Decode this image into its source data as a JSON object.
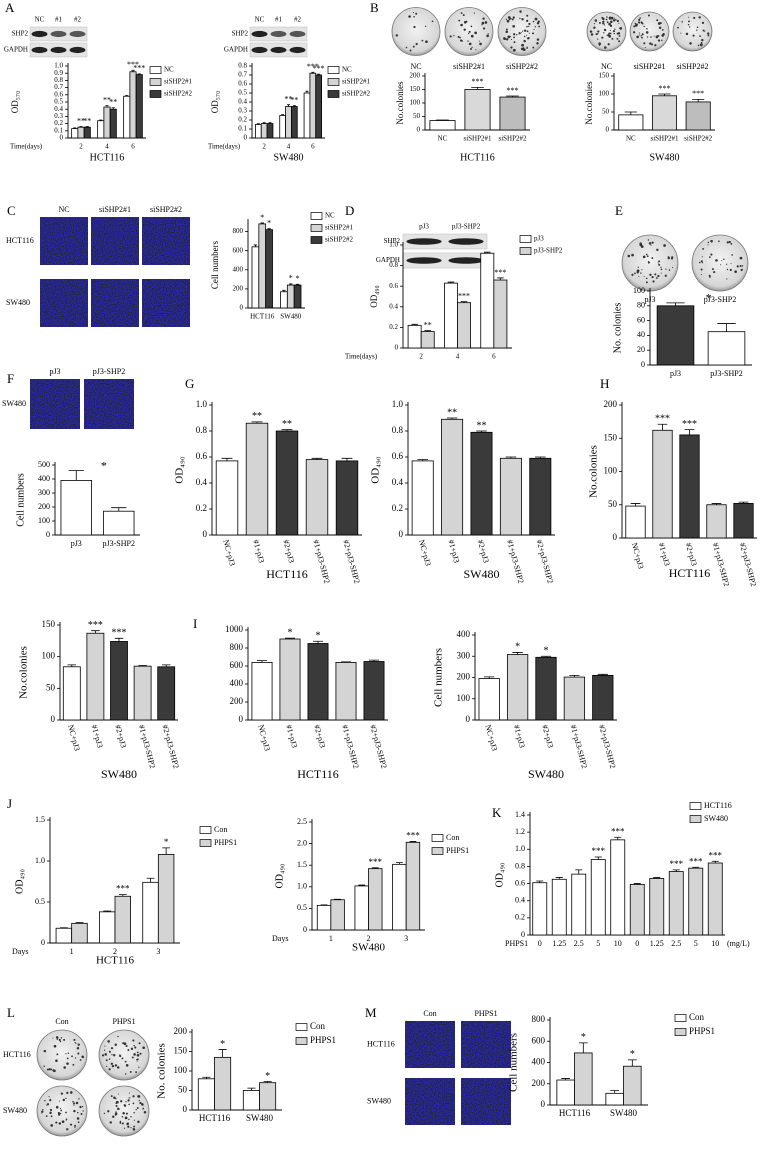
{
  "panel_letters": [
    "A",
    "B",
    "C",
    "D",
    "E",
    "F",
    "G",
    "H",
    "I",
    "J",
    "K",
    "L",
    "M"
  ],
  "images": [
    {
      "kind": "blot",
      "columns": [
        "NC",
        "#1",
        "#2"
      ],
      "rows": [
        "SHP2",
        "GAPDH"
      ]
    },
    {
      "kind": "blot",
      "columns": [
        "NC",
        "#1",
        "#2"
      ],
      "rows": [
        "SHP2",
        "GAPDH"
      ]
    },
    {
      "kind": "plate",
      "columns": [
        "NC",
        "siSHP2#1",
        "siSHP2#2"
      ]
    },
    {
      "kind": "plate",
      "columns": [
        "NC",
        "siSHP2#1",
        "siSHP2#2"
      ]
    },
    {
      "kind": "fluor",
      "columns": [
        "NC",
        "siSHP2#1",
        "siSHP2#2"
      ],
      "rows": [
        "HCT116",
        "SW480"
      ]
    },
    {
      "kind": "blot",
      "columns": [
        "pJ3",
        "pJ3-SHP2"
      ],
      "rows": [
        "SHP2",
        "GAPDH"
      ]
    },
    {
      "kind": "plate",
      "columns": [
        "pJ3",
        "pJ3-SHP2"
      ]
    },
    {
      "kind": "fluor",
      "columns": [
        "pJ3",
        "pJ3-SHP2"
      ],
      "rows": [
        "SW480"
      ]
    },
    {
      "kind": "plate",
      "columns": [
        "Con",
        "PHPS1"
      ],
      "rows": [
        "HCT116",
        "SW480"
      ]
    },
    {
      "kind": "fluor",
      "columns": [
        "Con",
        "PHPS1"
      ],
      "rows": [
        "HCT116",
        "SW480"
      ]
    }
  ],
  "chart_data": [
    {
      "type": "bar",
      "categories": [
        "2",
        "4",
        "6"
      ],
      "xcaption": "Time(days)",
      "xlabel": "HCT116",
      "ylabel": "OD₅₇₀",
      "ylim": [
        0,
        1
      ],
      "yticks": [
        0,
        0.1,
        0.2,
        0.3,
        0.4,
        0.5,
        0.6,
        0.7,
        0.8,
        0.9,
        {
          "value": 1,
          "label": "1.0"
        }
      ],
      "series": [
        {
          "name": "NC",
          "color": "#ffffff",
          "values": [
            0.13,
            0.24,
            0.58
          ],
          "errors": [
            0.01,
            0.01,
            0.01
          ],
          "stars": [
            null,
            null,
            null
          ]
        },
        {
          "name": "siSHP2#1",
          "color": "#d4d4d4",
          "values": [
            0.15,
            0.43,
            0.92
          ],
          "errors": [
            0.01,
            0.02,
            0.02
          ],
          "stars": [
            "**",
            "**",
            "***"
          ]
        },
        {
          "name": "siSHP2#2",
          "color": "#3a3a3a",
          "values": [
            0.15,
            0.4,
            0.88
          ],
          "errors": [
            0.01,
            0.02,
            0.01
          ],
          "stars": [
            "**",
            "**",
            "***"
          ]
        }
      ]
    },
    {
      "type": "bar",
      "categories": [
        "2",
        "4",
        "6"
      ],
      "xcaption": "Time(days)",
      "xlabel": "SW480",
      "ylabel": "OD₅₇₀",
      "ylim": [
        0,
        0.8
      ],
      "yticks": [
        0,
        0.1,
        0.2,
        0.3,
        0.4,
        0.5,
        0.6,
        0.7,
        0.8
      ],
      "series": [
        {
          "name": "NC",
          "color": "#ffffff",
          "values": [
            0.15,
            0.25,
            0.5
          ],
          "errors": [
            0.01,
            0.01,
            0.02
          ],
          "stars": [
            null,
            null,
            null
          ]
        },
        {
          "name": "siSHP2#1",
          "color": "#d4d4d4",
          "values": [
            0.16,
            0.35,
            0.72
          ],
          "errors": [
            0.01,
            0.02,
            0.01
          ],
          "stars": [
            null,
            "**",
            "***"
          ]
        },
        {
          "name": "siSHP2#2",
          "color": "#3a3a3a",
          "values": [
            0.16,
            0.35,
            0.7
          ],
          "errors": [
            0.01,
            0.01,
            0.01
          ],
          "stars": [
            null,
            "**",
            "***"
          ]
        }
      ]
    },
    {
      "type": "bar",
      "categories": [
        "NC",
        "siSHP2#1",
        "siSHP2#2"
      ],
      "values": [
        35,
        150,
        122
      ],
      "errors": [
        2,
        8,
        4
      ],
      "colors": [
        "#ffffff",
        "#d9d9d9",
        "#bdbdbd"
      ],
      "stars": [
        null,
        "***",
        "***"
      ],
      "ylim": [
        0,
        200
      ],
      "yticks": [
        0,
        50,
        100,
        150,
        200
      ],
      "ylabel": "No.colonies",
      "xlabel": "HCT116"
    },
    {
      "type": "bar",
      "categories": [
        "NC",
        "siSHP2#1",
        "siSHP2#2"
      ],
      "values": [
        42,
        95,
        78
      ],
      "errors": [
        8,
        5,
        7
      ],
      "colors": [
        "#ffffff",
        "#d9d9d9",
        "#bdbdbd"
      ],
      "stars": [
        null,
        "***",
        "***"
      ],
      "ylim": [
        0,
        150
      ],
      "yticks": [
        0,
        50,
        100,
        150
      ],
      "ylabel": "No.colonies",
      "xlabel": "SW480"
    },
    {
      "type": "bar",
      "categories": [
        "HCT116",
        "SW480"
      ],
      "ylabel": "Cell numbers",
      "ylim": [
        0,
        900
      ],
      "yticks": [
        0,
        200,
        400,
        600,
        800
      ],
      "series": [
        {
          "name": "NC",
          "color": "#ffffff",
          "values": [
            640,
            170
          ],
          "errors": [
            20,
            15
          ],
          "stars": [
            null,
            null
          ]
        },
        {
          "name": "siSHP2#1",
          "color": "#d4d4d4",
          "values": [
            880,
            240
          ],
          "errors": [
            10,
            12
          ],
          "stars": [
            "*",
            "*"
          ]
        },
        {
          "name": "siSHP2#2",
          "color": "#3a3a3a",
          "values": [
            820,
            240
          ],
          "errors": [
            10,
            8
          ],
          "stars": [
            "*",
            "*"
          ]
        }
      ]
    },
    {
      "type": "bar",
      "categories": [
        "2",
        "4",
        "6"
      ],
      "xcaption": "Time(days)",
      "ylabel": "OD₄₉₀",
      "ylim": [
        0,
        1
      ],
      "yticks": [
        0,
        0.2,
        0.4,
        0.6,
        0.8,
        {
          "value": 1,
          "label": "1.0"
        }
      ],
      "series": [
        {
          "name": "pJ3",
          "color": "#ffffff",
          "values": [
            0.22,
            0.63,
            0.92
          ],
          "errors": [
            0.01,
            0.01,
            0.01
          ],
          "stars": [
            null,
            null,
            null
          ]
        },
        {
          "name": "pJ3-SHP2",
          "color": "#d4d4d4",
          "values": [
            0.16,
            0.44,
            0.66
          ],
          "errors": [
            0.01,
            0.01,
            0.02
          ],
          "stars": [
            "**",
            "***",
            "***"
          ]
        }
      ]
    },
    {
      "type": "bar",
      "categories": [
        "pJ3",
        "pJ3-SHP2"
      ],
      "values": [
        80,
        45
      ],
      "errors": [
        4,
        11
      ],
      "colors": [
        "#3a3a3a",
        "#ffffff"
      ],
      "ylim": [
        0,
        100
      ],
      "yticks": [
        0,
        20,
        40,
        60,
        80,
        100
      ],
      "ylabel": "No. colonies",
      "annotation": "*"
    },
    {
      "type": "bar",
      "categories": [
        "pJ3",
        "pJ3-SHP2"
      ],
      "values": [
        390,
        170
      ],
      "errors": [
        70,
        25
      ],
      "colors": [
        "#ffffff",
        "#ffffff"
      ],
      "ylim": [
        0,
        500
      ],
      "yticks": [
        0,
        100,
        200,
        300,
        400,
        500
      ],
      "ylabel": "Cell numbers",
      "annotation": "*"
    },
    {
      "type": "bar",
      "categories": [
        "NC+pJ3",
        "#1+pJ3",
        "#2+pJ3",
        "#1+pJ3-SHP2",
        "#2+pJ3-SHP2"
      ],
      "values": [
        0.57,
        0.86,
        0.8,
        0.58,
        0.57
      ],
      "errors": [
        0.02,
        0.01,
        0.01,
        0.01,
        0.02
      ],
      "colors": [
        "#ffffff",
        "#d4d4d4",
        "#3a3a3a",
        "#d4d4d4",
        "#3a3a3a"
      ],
      "stars": [
        null,
        "**",
        "**",
        null,
        null
      ],
      "ylim": [
        0,
        1
      ],
      "yticks": [
        0,
        0.2,
        0.4,
        0.6,
        0.8,
        {
          "value": 1,
          "label": "1.0"
        }
      ],
      "ylabel": "OD₄₉₀",
      "xlabel": "HCT116",
      "rotate_labels": true
    },
    {
      "type": "bar",
      "categories": [
        "NC+pJ3",
        "#1+pJ3",
        "#2+pJ3",
        "#1+pJ3-SHP2",
        "#2+pJ3-SHP2"
      ],
      "values": [
        0.57,
        0.89,
        0.79,
        0.59,
        0.59
      ],
      "errors": [
        0.01,
        0.01,
        0.01,
        0.01,
        0.01
      ],
      "colors": [
        "#ffffff",
        "#d4d4d4",
        "#3a3a3a",
        "#d4d4d4",
        "#3a3a3a"
      ],
      "stars": [
        null,
        "**",
        "**",
        null,
        null
      ],
      "ylim": [
        0,
        1
      ],
      "yticks": [
        0,
        0.2,
        0.4,
        0.6,
        0.8,
        {
          "value": 1,
          "label": "1.0"
        }
      ],
      "ylabel": "OD₄₉₀",
      "xlabel": "SW480",
      "rotate_labels": true
    },
    {
      "type": "bar",
      "categories": [
        "NC+pJ3",
        "#1+pJ3",
        "#2+pJ3",
        "#1+pJ3-SHP2",
        "#2+pJ3-SHP2"
      ],
      "values": [
        48,
        162,
        155,
        50,
        52
      ],
      "errors": [
        4,
        9,
        8,
        2,
        2
      ],
      "colors": [
        "#ffffff",
        "#d4d4d4",
        "#3a3a3a",
        "#d4d4d4",
        "#3a3a3a"
      ],
      "stars": [
        null,
        "***",
        "***",
        null,
        null
      ],
      "ylim": [
        0,
        200
      ],
      "yticks": [
        0,
        50,
        100,
        150,
        200
      ],
      "ylabel": "No.colonies",
      "xlabel": "HCT116",
      "rotate_labels": true
    },
    {
      "type": "bar",
      "categories": [
        "NC+pJ3",
        "#1+pJ3",
        "#2+pJ3",
        "#1+pJ3-SHP2",
        "#2+pJ3-SHP2"
      ],
      "values": [
        84,
        137,
        124,
        85,
        84
      ],
      "errors": [
        3,
        4,
        5,
        1,
        3
      ],
      "colors": [
        "#ffffff",
        "#d4d4d4",
        "#3a3a3a",
        "#d4d4d4",
        "#3a3a3a"
      ],
      "stars": [
        null,
        "***",
        "***",
        null,
        null
      ],
      "ylim": [
        0,
        150
      ],
      "yticks": [
        0,
        50,
        100,
        150
      ],
      "ylabel": "No.colonies",
      "xlabel": "SW480",
      "rotate_labels": true
    },
    {
      "type": "bar",
      "categories": [
        "NC+pJ3",
        "#1+pJ3",
        "#2+pJ3",
        "#1+pJ3-SHP2",
        "#2+pJ3-SHP2"
      ],
      "values": [
        640,
        900,
        850,
        640,
        650
      ],
      "errors": [
        20,
        10,
        25,
        5,
        15
      ],
      "colors": [
        "#ffffff",
        "#d4d4d4",
        "#3a3a3a",
        "#d4d4d4",
        "#3a3a3a"
      ],
      "stars": [
        null,
        "*",
        "*",
        null,
        null
      ],
      "ylim": [
        0,
        1000
      ],
      "yticks": [
        0,
        200,
        400,
        600,
        800,
        1000
      ],
      "xlabel": "HCT116",
      "rotate_labels": true
    },
    {
      "type": "bar",
      "categories": [
        "NC+pJ3",
        "#1+pJ3",
        "#2+pJ3",
        "#1+pJ3-SHP2",
        "#2+pJ3-SHP2"
      ],
      "values": [
        195,
        308,
        295,
        202,
        210
      ],
      "errors": [
        8,
        10,
        5,
        8,
        5
      ],
      "colors": [
        "#ffffff",
        "#d4d4d4",
        "#3a3a3a",
        "#d4d4d4",
        "#3a3a3a"
      ],
      "stars": [
        null,
        "*",
        "*",
        null,
        null
      ],
      "ylim": [
        0,
        400
      ],
      "yticks": [
        0,
        100,
        200,
        300,
        400
      ],
      "ylabel": "Cell numbers",
      "xlabel": "SW480",
      "rotate_labels": true
    },
    {
      "type": "bar",
      "categories": [
        "1",
        "2",
        "3"
      ],
      "xcaption": "Days",
      "xlabel": "HCT116",
      "ylabel": "OD₄₉₀",
      "ylim": [
        0,
        1.5
      ],
      "yticks": [
        0,
        0.5,
        {
          "value": 1,
          "label": "1.0"
        },
        1.5
      ],
      "series": [
        {
          "name": "Con",
          "color": "#ffffff",
          "values": [
            0.18,
            0.38,
            0.74
          ],
          "errors": [
            0.005,
            0.01,
            0.05
          ],
          "stars": [
            null,
            null,
            null
          ]
        },
        {
          "name": "PHPS1",
          "color": "#d4d4d4",
          "values": [
            0.24,
            0.57,
            1.08
          ],
          "errors": [
            0.01,
            0.02,
            0.08
          ],
          "stars": [
            null,
            "***",
            "*"
          ]
        }
      ]
    },
    {
      "type": "bar",
      "categories": [
        "1",
        "2",
        "3"
      ],
      "xcaption": "Days",
      "xlabel": "SW480",
      "ylabel": "OD₄₉₀",
      "ylim": [
        0,
        2.5
      ],
      "yticks": [
        0,
        0.5,
        {
          "value": 1,
          "label": "1.0"
        },
        1.5,
        {
          "value": 2,
          "label": "2.0"
        },
        2.5
      ],
      "series": [
        {
          "name": "Con",
          "color": "#ffffff",
          "values": [
            0.57,
            1.02,
            1.52
          ],
          "errors": [
            0.01,
            0.02,
            0.04
          ],
          "stars": [
            null,
            null,
            null
          ]
        },
        {
          "name": "PHPS1",
          "color": "#d4d4d4",
          "values": [
            0.7,
            1.42,
            2.03
          ],
          "errors": [
            0.01,
            0.02,
            0.02
          ],
          "stars": [
            null,
            "***",
            "***"
          ]
        }
      ]
    },
    {
      "type": "bar",
      "categories": [
        "0",
        "1.25",
        "2.5",
        "5",
        "10",
        "0",
        "1.25",
        "2.5",
        "5",
        "10"
      ],
      "xcaption": "PHPS1",
      "xunit": "(mg/L)",
      "ylabel": "OD₄₉₀",
      "ylim": [
        0,
        1.4
      ],
      "yticks": [
        0,
        0.2,
        0.4,
        0.6,
        0.8,
        {
          "value": 1,
          "label": "1.0"
        },
        1.2,
        1.4
      ],
      "series": [
        {
          "name": "HCT116",
          "color": "#ffffff",
          "values": [
            0.61,
            0.65,
            0.71,
            0.88,
            1.11,
            null,
            null,
            null,
            null,
            null
          ],
          "errors": [
            0.02,
            0.02,
            0.05,
            0.03,
            0.03,
            null,
            null,
            null,
            null,
            null
          ],
          "stars": [
            null,
            null,
            null,
            "***",
            "***",
            null,
            null,
            null,
            null,
            null
          ]
        },
        {
          "name": "SW480",
          "color": "#d4d4d4",
          "values": [
            null,
            null,
            null,
            null,
            null,
            0.59,
            0.66,
            0.74,
            0.78,
            0.84
          ],
          "errors": [
            null,
            null,
            null,
            null,
            null,
            0.01,
            0.01,
            0.02,
            0.01,
            0.02
          ],
          "stars": [
            null,
            null,
            null,
            null,
            null,
            null,
            null,
            "***",
            "***",
            "***"
          ]
        }
      ]
    },
    {
      "type": "bar",
      "categories": [
        "HCT116",
        "SW480"
      ],
      "ylabel": "No. colonies",
      "ylim": [
        0,
        200
      ],
      "yticks": [
        0,
        50,
        100,
        150,
        200
      ],
      "series": [
        {
          "name": "Con",
          "color": "#ffffff",
          "values": [
            80,
            50
          ],
          "errors": [
            4,
            6
          ],
          "stars": [
            null,
            null
          ]
        },
        {
          "name": "PHPS1",
          "color": "#d4d4d4",
          "values": [
            135,
            70
          ],
          "errors": [
            20,
            3
          ],
          "stars": [
            "*",
            "*"
          ]
        }
      ]
    },
    {
      "type": "bar",
      "categories": [
        "HCT116",
        "SW480"
      ],
      "ylabel": "Cell numbers",
      "ylim": [
        0,
        800
      ],
      "yticks": [
        0,
        200,
        400,
        600,
        800
      ],
      "series": [
        {
          "name": "Con",
          "color": "#ffffff",
          "values": [
            235,
            110
          ],
          "errors": [
            15,
            25
          ],
          "stars": [
            null,
            null
          ]
        },
        {
          "name": "PHPS1",
          "color": "#d4d4d4",
          "values": [
            490,
            365
          ],
          "errors": [
            95,
            60
          ],
          "stars": [
            "*",
            "*"
          ]
        }
      ]
    }
  ]
}
